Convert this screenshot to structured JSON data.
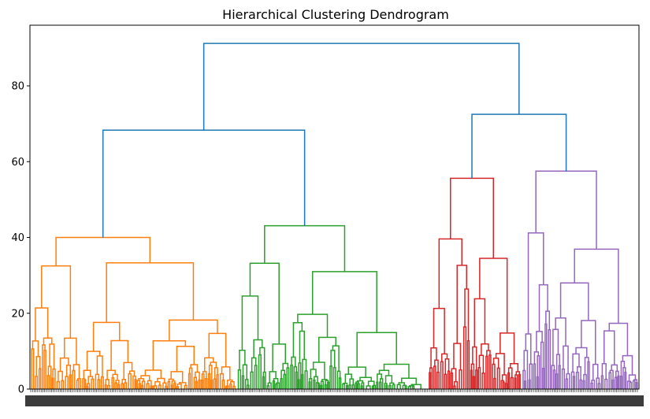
{
  "chart_data": {
    "type": "dendrogram",
    "title": "Hierarchical Clustering Dendrogram",
    "xlabel": "",
    "ylabel": "",
    "ylim": [
      0,
      96
    ],
    "yticks": [
      0,
      20,
      40,
      60,
      80
    ],
    "grid": false,
    "colors": {
      "top": "#1f77b4",
      "cluster1": "#ff7f0e",
      "cluster2": "#2ca02c",
      "cluster3": "#d62728",
      "cluster4": "#9467bd"
    },
    "top_links": [
      {
        "left": "A",
        "right": "B",
        "height": 91.2,
        "color": "top"
      },
      {
        "left": "cluster1",
        "right": "cluster2",
        "height": 68.3,
        "color": "top"
      },
      {
        "left": "cluster3",
        "right": "cluster4",
        "height": 72.5,
        "color": "top"
      }
    ],
    "clusters": [
      {
        "id": "cluster1",
        "color": "cluster1",
        "merge_height": 40.0,
        "sub_heights": [
          32.5,
          33.3,
          27.0,
          23.5,
          19.3,
          16.8,
          12.1,
          8.0
        ]
      },
      {
        "id": "cluster2",
        "color": "cluster2",
        "merge_height": 43.1,
        "sub_heights": [
          33.2,
          31.0,
          25.3,
          22.6,
          18.5,
          16.0,
          12.6,
          9.5
        ]
      },
      {
        "id": "cluster3",
        "color": "cluster3",
        "merge_height": 55.6,
        "sub_heights": [
          39.6,
          34.5,
          23.0,
          18.4,
          15.8,
          12.6,
          8.1
        ]
      },
      {
        "id": "cluster4",
        "color": "cluster4",
        "merge_height": 57.5,
        "sub_heights": [
          41.2,
          36.9,
          29.3,
          23.1,
          19.5,
          15.7,
          12.6,
          8.4
        ]
      }
    ]
  }
}
